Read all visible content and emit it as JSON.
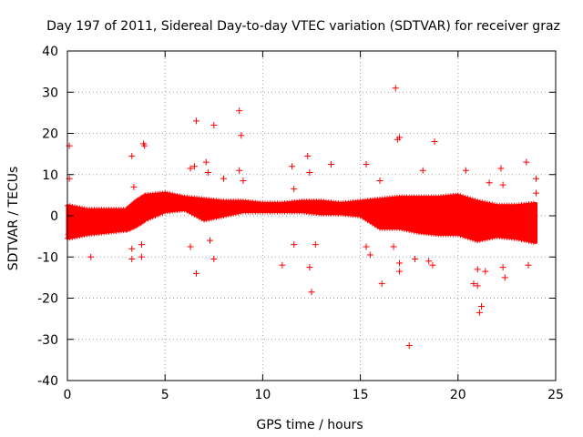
{
  "chart_data": {
    "type": "scatter",
    "title": "Day 197 of 2011, Sidereal Day-to-day VTEC variation (SDTVAR) for receiver graz",
    "xlabel": "GPS time / hours",
    "ylabel": "SDTVAR / TECUs",
    "xlim": [
      0,
      25
    ],
    "ylim": [
      -40,
      40
    ],
    "xticks": [
      0,
      5,
      10,
      15,
      20,
      25
    ],
    "yticks": [
      -40,
      -30,
      -20,
      -10,
      0,
      10,
      20,
      30,
      40
    ],
    "xtick_labels": [
      "0",
      "5",
      "10",
      "15",
      "20",
      "25"
    ],
    "ytick_labels": [
      "-40",
      "-30",
      "-20",
      "-10",
      "0",
      "10",
      "20",
      "30",
      "40"
    ],
    "grid": true,
    "marker": "+",
    "color": "#ff0000",
    "dense_band": [
      {
        "x": 0.0,
        "low": -5.5,
        "high": 2.5
      },
      {
        "x": 1.0,
        "low": -4.5,
        "high": 1.5
      },
      {
        "x": 2.0,
        "low": -4.0,
        "high": 1.5
      },
      {
        "x": 3.0,
        "low": -3.5,
        "high": 1.5
      },
      {
        "x": 3.5,
        "low": -2.5,
        "high": 3.5
      },
      {
        "x": 4.0,
        "low": -1.0,
        "high": 5.0
      },
      {
        "x": 5.0,
        "low": 1.0,
        "high": 5.5
      },
      {
        "x": 6.0,
        "low": 1.5,
        "high": 4.5
      },
      {
        "x": 7.0,
        "low": -1.0,
        "high": 4.0
      },
      {
        "x": 8.0,
        "low": 0.0,
        "high": 3.5
      },
      {
        "x": 9.0,
        "low": 1.0,
        "high": 3.5
      },
      {
        "x": 10.0,
        "low": 1.0,
        "high": 3.0
      },
      {
        "x": 11.0,
        "low": 1.0,
        "high": 3.0
      },
      {
        "x": 12.0,
        "low": 1.0,
        "high": 3.5
      },
      {
        "x": 13.0,
        "low": 0.5,
        "high": 3.5
      },
      {
        "x": 14.0,
        "low": 0.5,
        "high": 3.0
      },
      {
        "x": 15.0,
        "low": 0.0,
        "high": 3.5
      },
      {
        "x": 16.0,
        "low": -3.0,
        "high": 4.0
      },
      {
        "x": 17.0,
        "low": -3.0,
        "high": 4.5
      },
      {
        "x": 18.0,
        "low": -4.0,
        "high": 4.5
      },
      {
        "x": 19.0,
        "low": -4.5,
        "high": 4.5
      },
      {
        "x": 20.0,
        "low": -4.5,
        "high": 5.0
      },
      {
        "x": 21.0,
        "low": -6.0,
        "high": 3.5
      },
      {
        "x": 22.0,
        "low": -5.0,
        "high": 2.5
      },
      {
        "x": 23.0,
        "low": -5.5,
        "high": 2.5
      },
      {
        "x": 24.0,
        "low": -6.5,
        "high": 3.0
      }
    ],
    "outliers": [
      {
        "x": 0.1,
        "y": 17.0
      },
      {
        "x": 0.1,
        "y": 9.0
      },
      {
        "x": 0.05,
        "y": -4.5
      },
      {
        "x": 1.2,
        "y": -10.0
      },
      {
        "x": 3.3,
        "y": 14.5
      },
      {
        "x": 3.4,
        "y": 7.0
      },
      {
        "x": 3.3,
        "y": -8.0
      },
      {
        "x": 3.3,
        "y": -10.5
      },
      {
        "x": 3.8,
        "y": -7.0
      },
      {
        "x": 3.8,
        "y": -10.0
      },
      {
        "x": 3.9,
        "y": 17.5
      },
      {
        "x": 3.95,
        "y": 17.0
      },
      {
        "x": 6.3,
        "y": 11.5
      },
      {
        "x": 6.5,
        "y": 12.0
      },
      {
        "x": 6.3,
        "y": -7.5
      },
      {
        "x": 6.6,
        "y": 23.0
      },
      {
        "x": 6.6,
        "y": -14.0
      },
      {
        "x": 7.1,
        "y": 13.0
      },
      {
        "x": 7.2,
        "y": 10.5
      },
      {
        "x": 7.3,
        "y": -6.0
      },
      {
        "x": 7.5,
        "y": 22.0
      },
      {
        "x": 7.5,
        "y": -10.5
      },
      {
        "x": 8.0,
        "y": 9.0
      },
      {
        "x": 8.8,
        "y": 25.5
      },
      {
        "x": 8.9,
        "y": 19.5
      },
      {
        "x": 8.8,
        "y": 11.0
      },
      {
        "x": 9.0,
        "y": 8.5
      },
      {
        "x": 11.0,
        "y": -12.0
      },
      {
        "x": 11.5,
        "y": 12.0
      },
      {
        "x": 11.6,
        "y": 6.5
      },
      {
        "x": 11.6,
        "y": -7.0
      },
      {
        "x": 12.3,
        "y": 14.5
      },
      {
        "x": 12.4,
        "y": 10.5
      },
      {
        "x": 12.4,
        "y": -12.5
      },
      {
        "x": 12.5,
        "y": -18.5
      },
      {
        "x": 12.7,
        "y": -7.0
      },
      {
        "x": 13.5,
        "y": 12.5
      },
      {
        "x": 15.3,
        "y": 12.5
      },
      {
        "x": 15.3,
        "y": -7.5
      },
      {
        "x": 15.5,
        "y": -9.5
      },
      {
        "x": 16.0,
        "y": 8.5
      },
      {
        "x": 16.1,
        "y": -16.5
      },
      {
        "x": 16.7,
        "y": -7.5
      },
      {
        "x": 16.8,
        "y": 31.0
      },
      {
        "x": 16.9,
        "y": 18.5
      },
      {
        "x": 17.0,
        "y": 19.0
      },
      {
        "x": 17.0,
        "y": -11.5
      },
      {
        "x": 17.0,
        "y": -13.5
      },
      {
        "x": 17.5,
        "y": -31.5
      },
      {
        "x": 17.8,
        "y": -10.5
      },
      {
        "x": 18.2,
        "y": 11.0
      },
      {
        "x": 18.5,
        "y": -11.0
      },
      {
        "x": 18.8,
        "y": 18.0
      },
      {
        "x": 18.7,
        "y": -12.0
      },
      {
        "x": 20.4,
        "y": 11.0
      },
      {
        "x": 20.8,
        "y": -16.5
      },
      {
        "x": 21.0,
        "y": -17.0
      },
      {
        "x": 21.0,
        "y": -13.0
      },
      {
        "x": 21.1,
        "y": -23.5
      },
      {
        "x": 21.2,
        "y": -22.0
      },
      {
        "x": 21.4,
        "y": -13.5
      },
      {
        "x": 21.6,
        "y": 8.0
      },
      {
        "x": 22.2,
        "y": 11.5
      },
      {
        "x": 22.3,
        "y": 7.5
      },
      {
        "x": 22.3,
        "y": -12.5
      },
      {
        "x": 22.4,
        "y": -15.0
      },
      {
        "x": 23.5,
        "y": 13.0
      },
      {
        "x": 23.6,
        "y": -12.0
      },
      {
        "x": 24.0,
        "y": 9.0
      },
      {
        "x": 24.0,
        "y": 5.5
      }
    ]
  }
}
